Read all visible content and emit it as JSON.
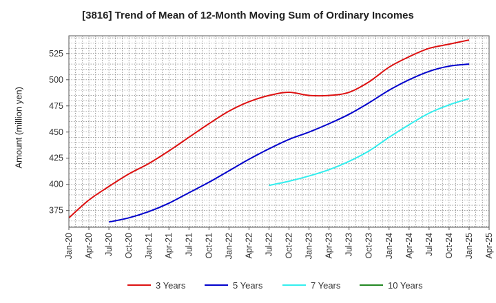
{
  "chart_data": {
    "type": "line",
    "title": "[3816]  Trend of Mean of 12-Month Moving Sum of Ordinary Incomes",
    "ylabel": "Amount (million yen)",
    "xlabel": "",
    "x_tick_labels": [
      "Jan-20",
      "Apr-20",
      "Jul-20",
      "Oct-20",
      "Jan-21",
      "Apr-21",
      "Jul-21",
      "Oct-21",
      "Jan-22",
      "Apr-22",
      "Jul-22",
      "Oct-22",
      "Jan-23",
      "Apr-23",
      "Jul-23",
      "Oct-23",
      "Jan-24",
      "Apr-24",
      "Jul-24",
      "Oct-24",
      "Jan-25",
      "Apr-25"
    ],
    "y_ticks": [
      375,
      400,
      425,
      450,
      475,
      500,
      525
    ],
    "ylim": [
      359,
      542
    ],
    "grid": true,
    "legend_position": "bottom",
    "series": [
      {
        "name": "3 Years",
        "color": "#dd1111",
        "x": [
          "Jan-20",
          "Apr-20",
          "Jul-20",
          "Oct-20",
          "Jan-21",
          "Apr-21",
          "Jul-21",
          "Oct-21",
          "Jan-22",
          "Apr-22",
          "Jul-22",
          "Oct-22",
          "Jan-23",
          "Apr-23",
          "Jul-23",
          "Oct-23",
          "Jan-24",
          "Apr-24",
          "Jul-24",
          "Oct-24",
          "Jan-25"
        ],
        "values": [
          368,
          385,
          398,
          410,
          420,
          432,
          445,
          458,
          470,
          479,
          485,
          488,
          485,
          485,
          488,
          498,
          512,
          522,
          530,
          534,
          538
        ]
      },
      {
        "name": "5 Years",
        "color": "#0000cc",
        "x": [
          "Jul-20",
          "Oct-20",
          "Jan-21",
          "Apr-21",
          "Jul-21",
          "Oct-21",
          "Jan-22",
          "Apr-22",
          "Jul-22",
          "Oct-22",
          "Jan-23",
          "Apr-23",
          "Jul-23",
          "Oct-23",
          "Jan-24",
          "Apr-24",
          "Jul-24",
          "Oct-24",
          "Jan-25"
        ],
        "values": [
          364,
          368,
          374,
          382,
          392,
          402,
          413,
          424,
          434,
          443,
          450,
          458,
          467,
          478,
          490,
          500,
          508,
          513,
          515
        ]
      },
      {
        "name": "7 Years",
        "color": "#33eeee",
        "x": [
          "Jul-22",
          "Oct-22",
          "Jan-23",
          "Apr-23",
          "Jul-23",
          "Oct-23",
          "Jan-24",
          "Apr-24",
          "Jul-24",
          "Oct-24",
          "Jan-25"
        ],
        "values": [
          399,
          403,
          408,
          414,
          422,
          432,
          445,
          457,
          468,
          476,
          482
        ]
      },
      {
        "name": "10 Years",
        "color": "#228822",
        "x": [],
        "values": []
      }
    ]
  }
}
